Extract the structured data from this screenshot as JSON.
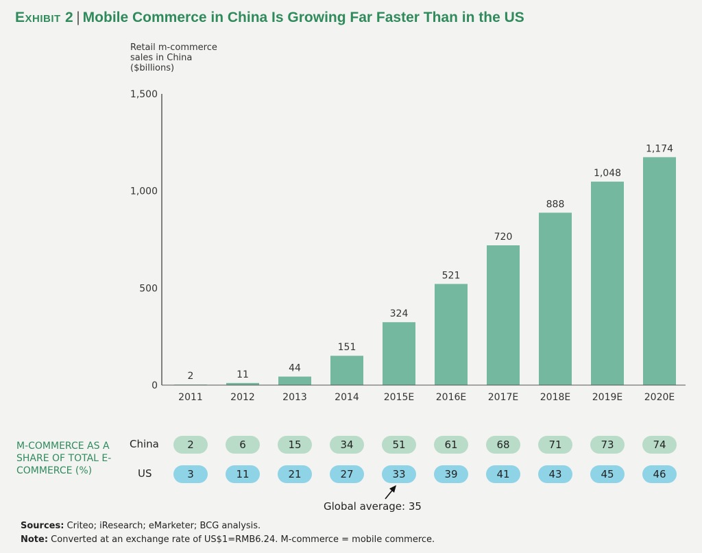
{
  "title": {
    "exhibit": "Exhibit 2",
    "separator": "|",
    "text": "Mobile Commerce in China Is Growing Far Faster Than in the US"
  },
  "chart_data": {
    "type": "bar",
    "ylabel": "Retail m-commerce sales in China ($billions)",
    "categories": [
      "2011",
      "2012",
      "2013",
      "2014",
      "2015E",
      "2016E",
      "2017E",
      "2018E",
      "2019E",
      "2020E"
    ],
    "values": [
      2,
      11,
      44,
      151,
      324,
      521,
      720,
      888,
      1048,
      1174
    ],
    "value_labels": [
      "2",
      "11",
      "44",
      "151",
      "324",
      "521",
      "720",
      "888",
      "1,048",
      "1,174"
    ],
    "ylim": [
      0,
      1500
    ],
    "yticks": [
      0,
      500,
      1000,
      1500
    ],
    "ytick_labels": [
      "0",
      "500",
      "1,000",
      "1,500"
    ],
    "bar_color": "#74b8a0"
  },
  "share_table": {
    "label": "M-COMMERCE AS A SHARE OF TOTAL E-COMMERCE (%)",
    "rows": [
      {
        "name": "China",
        "values": [
          "2",
          "6",
          "15",
          "34",
          "51",
          "61",
          "68",
          "71",
          "73",
          "74"
        ],
        "color": "#b8dcc8"
      },
      {
        "name": "US",
        "values": [
          "3",
          "11",
          "21",
          "27",
          "33",
          "39",
          "41",
          "43",
          "45",
          "46"
        ],
        "color": "#8fd3e6"
      }
    ],
    "annotation": "Global average: 35"
  },
  "footer": {
    "sources_label": "Sources:",
    "sources_text": " Criteo; iResearch; eMarketer; BCG analysis.",
    "note_label": "Note:",
    "note_text": " Converted at an exchange rate of US$1=RMB6.24. M-commerce = mobile commerce."
  }
}
